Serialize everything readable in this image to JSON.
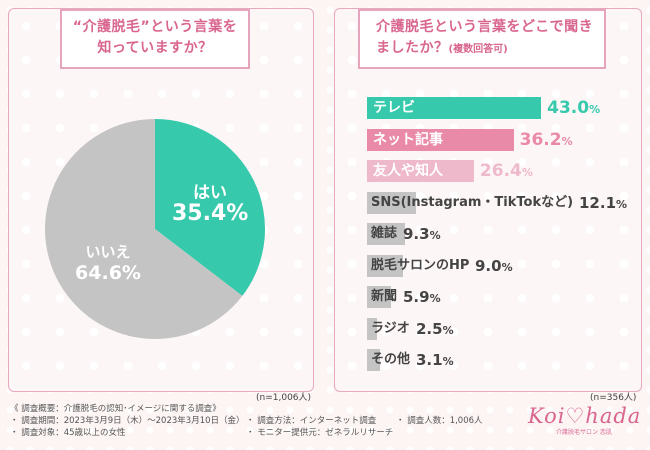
{
  "left": {
    "question": "“介護脱毛”という言葉を知っていますか？",
    "n_label": "(n=1,006人)"
  },
  "right": {
    "question": "介護脱毛という言葉をどこで聞きましたか？",
    "question_sub": "(複数回答可)",
    "n_label": "(n=356人)"
  },
  "chart_data": [
    {
      "type": "pie",
      "title": "“介護脱毛”という言葉を知っていますか？",
      "categories": [
        "はい",
        "いいえ"
      ],
      "values": [
        35.4,
        64.6
      ],
      "value_labels": [
        "35.4%",
        "64.6%"
      ],
      "colors": [
        "#37c9ac",
        "#c4c4c4"
      ],
      "n": "(n=1,006人)"
    },
    {
      "type": "bar",
      "orientation": "horizontal",
      "title": "介護脱毛という言葉をどこで聞きましたか？(複数回答可)",
      "categories": [
        "テレビ",
        "ネット記事",
        "友人や知人",
        "SNS(Instagram・TikTokなど)",
        "雑誌",
        "脱毛サロンのHP",
        "新聞",
        "ラジオ",
        "その他"
      ],
      "values": [
        43.0,
        36.2,
        26.4,
        12.1,
        9.3,
        9.0,
        5.9,
        2.5,
        3.1
      ],
      "value_labels": [
        "43.0%",
        "36.2%",
        "26.4%",
        "12.1%",
        "9.3%",
        "9.0%",
        "5.9%",
        "2.5%",
        "3.1%"
      ],
      "bar_colors": [
        "#37c9ac",
        "#ea8aa9",
        "#efb9cc",
        "#c4c4c4",
        "#c4c4c4",
        "#c4c4c4",
        "#c4c4c4",
        "#c4c4c4",
        "#c4c4c4"
      ],
      "value_colors": [
        "#37c9ac",
        "#ea8aa9",
        "#efb9cc",
        "#444444",
        "#444444",
        "#444444",
        "#444444",
        "#444444",
        "#444444"
      ],
      "n": "(n=356人)"
    }
  ],
  "footer": {
    "title": "《 調査概要：介護脱毛の認知･イメージに関する調査》",
    "period": "・ 調査期間：2023年3月9日（木）〜2023年3月10日（金）",
    "target": "・ 調査対象：45歳以上の女性",
    "method": "・ 調査方法：インターネット調査",
    "provider": "・ モニター提供元：ゼネラルリサーチ",
    "count": "・ 調査人数：1,006人"
  },
  "logo": {
    "text": "Koi♡hada",
    "tagline": "介護脱毛サロン 恋肌"
  }
}
